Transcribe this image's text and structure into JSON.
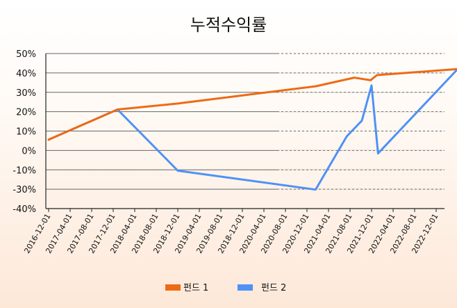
{
  "chart_data": {
    "type": "line",
    "title": "누적수익률",
    "xlabel": "",
    "ylabel": "",
    "y_tick_labels": [
      "50%",
      "40%",
      "30%",
      "20%",
      "10%",
      "0%",
      "-10%",
      "-30%",
      "-40%"
    ],
    "x_tick_labels": [
      "2016-12-01",
      "2017-04-01",
      "2017-08-01",
      "2017-12-01",
      "2018-04-01",
      "2018-08-01",
      "2018-12-01",
      "2019-04-01",
      "2019-08-01",
      "2018-12-01",
      "2020-04-01",
      "2020-08-01",
      "2020-12-01",
      "2021-04-01",
      "2021-08-01",
      "2021-12-01",
      "2022-04-01",
      "2022-08-01",
      "2022-12-01"
    ],
    "ylim": [
      -40,
      50
    ],
    "grid": true,
    "legend": "bottom",
    "series": [
      {
        "name": "펀드 1",
        "color": "#ee6a14",
        "x": [
          0,
          3.2,
          6,
          12.4,
          14.2,
          14.95,
          15.25,
          19
        ],
        "y": [
          0,
          17.5,
          21,
          31,
          36,
          34.5,
          37.5,
          41
        ]
      },
      {
        "name": "펀드 2",
        "color": "#4f91f5",
        "x": [
          0,
          3.2,
          6,
          12.4,
          13.85,
          14.55,
          15,
          15.3,
          19
        ],
        "y": [
          0,
          17.5,
          -18,
          -29,
          2,
          11,
          31.5,
          -8,
          41
        ]
      }
    ]
  }
}
